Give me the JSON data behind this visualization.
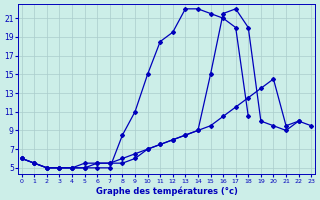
{
  "bg_color": "#cceee8",
  "line_color": "#0000bb",
  "grid_color": "#aacccc",
  "xlabel": "Graphe des températures (°c)",
  "x_ticks": [
    0,
    1,
    2,
    3,
    4,
    5,
    6,
    7,
    8,
    9,
    10,
    11,
    12,
    13,
    14,
    15,
    16,
    17,
    18,
    19,
    20,
    21,
    22,
    23
  ],
  "y_ticks": [
    5,
    7,
    9,
    11,
    13,
    15,
    17,
    19,
    21
  ],
  "xlim": [
    -0.3,
    23.3
  ],
  "ylim": [
    4.3,
    22.5
  ],
  "lines": [
    {
      "x": [
        0,
        1,
        2,
        3,
        4,
        5,
        6,
        7,
        8,
        9,
        10,
        11,
        12,
        13,
        14,
        15,
        16,
        17,
        18
      ],
      "y": [
        6,
        5.5,
        5,
        5,
        5,
        5,
        5,
        5,
        8.5,
        11,
        15,
        18.5,
        19.5,
        22,
        22,
        21.5,
        21,
        20,
        10.5
      ]
    },
    {
      "x": [
        0,
        1,
        2,
        3,
        4,
        5,
        6,
        7,
        8,
        9,
        10,
        11,
        12,
        13,
        14,
        15,
        16,
        17,
        18,
        19,
        20,
        21,
        22
      ],
      "y": [
        6,
        5.5,
        5,
        5,
        5,
        5,
        5.5,
        5.5,
        5.5,
        6,
        7,
        7.5,
        8,
        8.5,
        9,
        15,
        21.5,
        22,
        20,
        10,
        9.5,
        9,
        10
      ]
    },
    {
      "x": [
        0,
        1,
        2,
        3,
        4,
        5,
        6,
        7,
        8,
        9,
        10,
        11,
        12,
        13,
        14,
        15,
        16,
        17,
        18,
        19,
        20,
        21,
        22,
        23
      ],
      "y": [
        6,
        5.5,
        5,
        5,
        5,
        5.5,
        5.5,
        5.5,
        6,
        6.5,
        7,
        7.5,
        8,
        8.5,
        9,
        9.5,
        10.5,
        11.5,
        12.5,
        13.5,
        14.5,
        9.5,
        10,
        9.5
      ]
    }
  ]
}
